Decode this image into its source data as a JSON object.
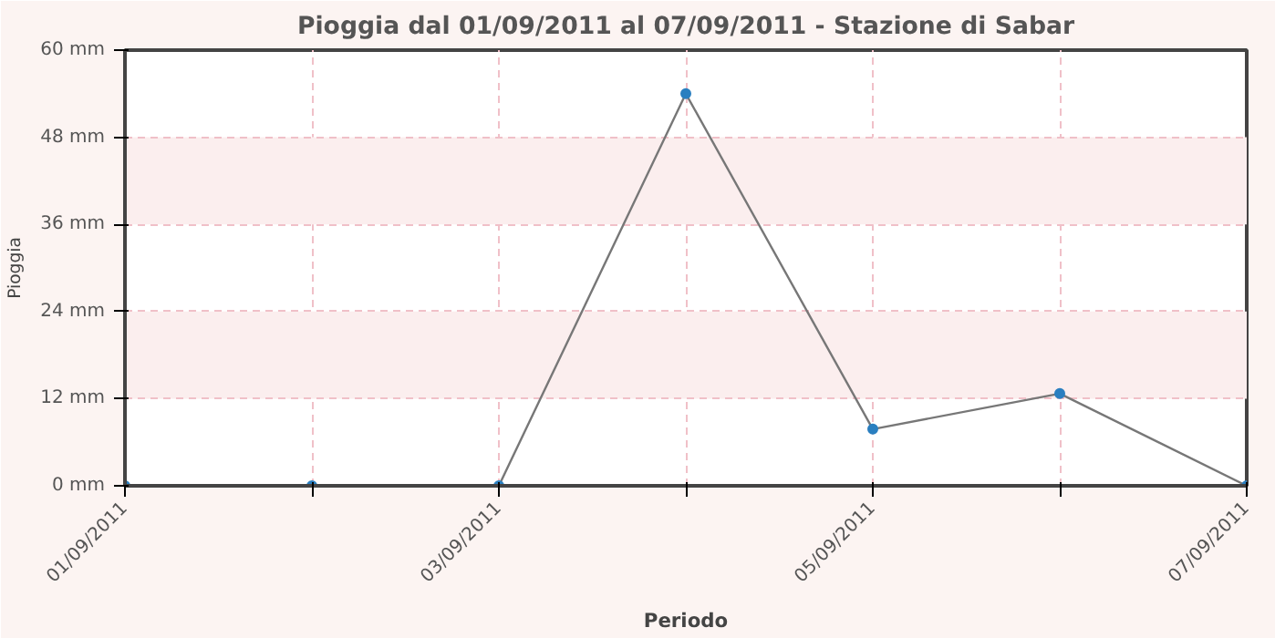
{
  "chart_data": {
    "type": "line",
    "title": "Pioggia dal 01/09/2011 al 07/09/2011 - Stazione di Sabar",
    "xlabel": "Periodo",
    "ylabel": "Pioggia",
    "x": [
      "2011-09-01",
      "2011-09-02",
      "2011-09-03",
      "2011-09-04",
      "2011-09-05",
      "2011-09-06",
      "2011-09-07"
    ],
    "series": [
      {
        "color": "#777777",
        "values": [
          0,
          0,
          0,
          54,
          7.8,
          12.7,
          0
        ]
      }
    ],
    "xlim": [
      "2011-09-01",
      "2011-09-07"
    ],
    "xticks": [
      {
        "value": "2011-09-01",
        "label": "01/09/2011"
      },
      {
        "value": "2011-09-02",
        "label": null
      },
      {
        "value": "2011-09-03",
        "label": "03/09/2011"
      },
      {
        "value": "2011-09-04",
        "label": null
      },
      {
        "value": "2011-09-05",
        "label": "05/09/2011"
      },
      {
        "value": "2011-09-06",
        "label": null
      },
      {
        "value": "2011-09-07",
        "label": "07/09/2011"
      }
    ],
    "ylim": [
      0,
      60
    ],
    "yticks": [
      {
        "value": 0,
        "label": "0 mm"
      },
      {
        "value": 12,
        "label": "12 mm"
      },
      {
        "value": 24,
        "label": "24 mm"
      },
      {
        "value": 36,
        "label": "36 mm"
      },
      {
        "value": 48,
        "label": "48 mm"
      },
      {
        "value": 60,
        "label": "60 mm"
      }
    ],
    "grid": true,
    "marker": "circle",
    "line_style": "solid"
  }
}
